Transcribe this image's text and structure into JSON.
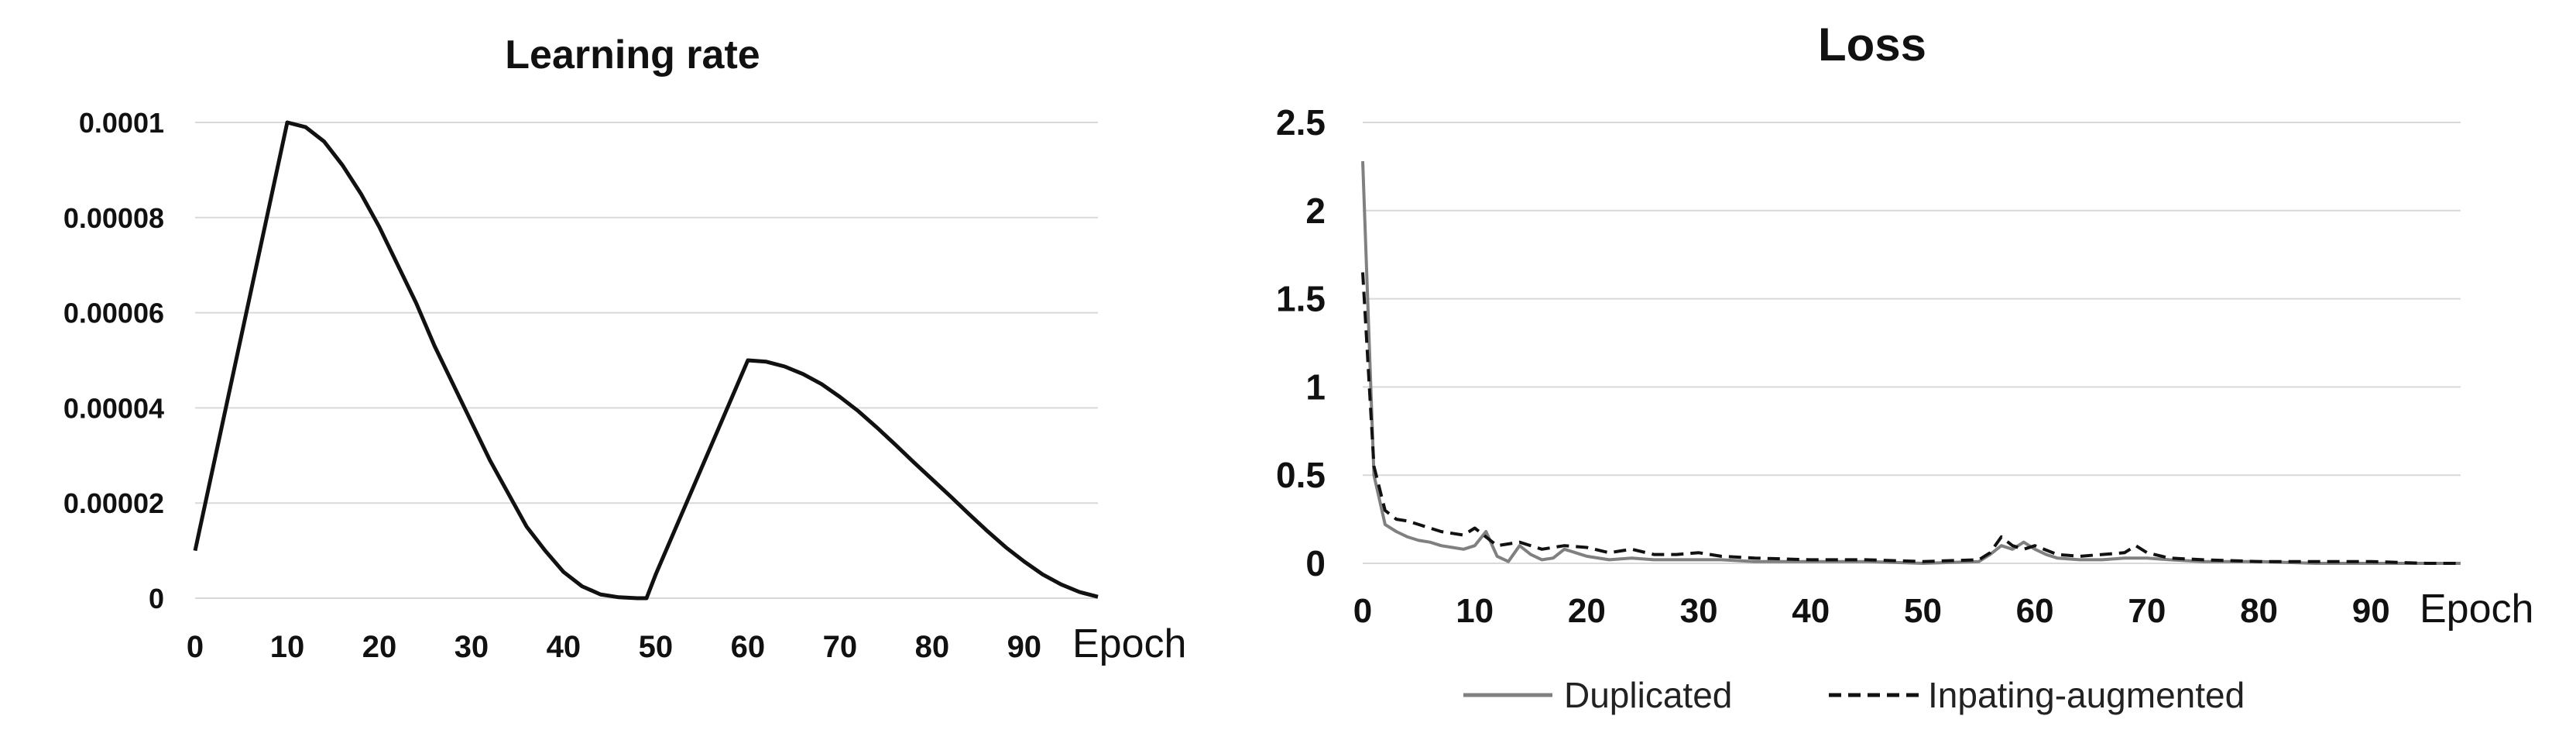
{
  "chart_data": [
    {
      "type": "line",
      "title": "Learning rate",
      "xlabel": "Epoch",
      "ylabel": "",
      "xlim": [
        0,
        98
      ],
      "ylim": [
        0,
        0.0001
      ],
      "x_ticks": [
        "0",
        "10",
        "20",
        "30",
        "40",
        "50",
        "60",
        "70",
        "80",
        "90"
      ],
      "y_ticks": [
        "0",
        "0.00002",
        "0.00004",
        "0.00006",
        "0.00008",
        "0.0001"
      ],
      "grid": true,
      "series": [
        {
          "x": [
            0,
            10,
            12,
            14,
            16,
            18,
            20,
            22,
            24,
            26,
            28,
            30,
            32,
            34,
            36,
            38,
            40,
            42,
            44,
            46,
            48,
            49,
            50,
            60,
            62,
            64,
            66,
            68,
            70,
            72,
            74,
            76,
            78,
            80,
            82,
            84,
            86,
            88,
            90,
            92,
            94,
            96,
            98
          ],
          "y": [
            1e-05,
            0.0001,
            9.9e-05,
            9.6e-05,
            9.1e-05,
            8.5e-05,
            7.8e-05,
            7e-05,
            6.2e-05,
            5.3e-05,
            4.5e-05,
            3.7e-05,
            2.9e-05,
            2.2e-05,
            1.5e-05,
            1e-05,
            5.5e-06,
            2.5e-06,
            8e-07,
            2e-07,
            0.0,
            0.0,
            5e-06,
            5e-05,
            4.97e-05,
            4.87e-05,
            4.71e-05,
            4.5e-05,
            4.23e-05,
            3.93e-05,
            3.59e-05,
            3.23e-05,
            2.86e-05,
            2.5e-05,
            2.14e-05,
            1.77e-05,
            1.41e-05,
            1.07e-05,
            7.7e-06,
            5e-06,
            2.9e-06,
            1.3e-06,
            3e-07
          ]
        }
      ]
    },
    {
      "type": "line",
      "title": "Loss",
      "xlabel": "Epoch",
      "ylabel": "",
      "xlim": [
        0,
        98
      ],
      "ylim": [
        0,
        2.5
      ],
      "x_ticks": [
        "0",
        "10",
        "20",
        "30",
        "40",
        "50",
        "60",
        "70",
        "80",
        "90"
      ],
      "y_ticks": [
        "0",
        "0.5",
        "1",
        "1.5",
        "2",
        "2.5"
      ],
      "grid": true,
      "legend": "bottom",
      "series": [
        {
          "name": "Duplicated",
          "color": "#808080",
          "dash": "solid",
          "x": [
            0,
            1,
            2,
            3,
            4,
            5,
            6,
            7,
            8,
            9,
            10,
            11,
            12,
            13,
            14,
            15,
            16,
            17,
            18,
            19,
            20,
            22,
            24,
            26,
            28,
            30,
            32,
            35,
            40,
            45,
            50,
            55,
            56,
            57,
            58,
            59,
            60,
            61,
            62,
            64,
            66,
            68,
            70,
            72,
            75,
            80,
            85,
            90,
            95,
            98
          ],
          "y": [
            2.28,
            0.5,
            0.22,
            0.18,
            0.15,
            0.13,
            0.12,
            0.1,
            0.09,
            0.08,
            0.1,
            0.18,
            0.04,
            0.01,
            0.1,
            0.05,
            0.02,
            0.03,
            0.08,
            0.06,
            0.04,
            0.02,
            0.03,
            0.02,
            0.02,
            0.02,
            0.02,
            0.01,
            0.01,
            0.01,
            0.0,
            0.01,
            0.05,
            0.1,
            0.08,
            0.12,
            0.08,
            0.05,
            0.03,
            0.02,
            0.02,
            0.03,
            0.03,
            0.02,
            0.01,
            0.01,
            0.0,
            0.0,
            0.0,
            0.0
          ]
        },
        {
          "name": "Inpating-augmented",
          "color": "#111111",
          "dash": "dashed",
          "x": [
            0,
            1,
            2,
            3,
            4,
            5,
            6,
            7,
            8,
            9,
            10,
            11,
            12,
            14,
            16,
            18,
            20,
            22,
            24,
            26,
            28,
            30,
            32,
            35,
            40,
            45,
            50,
            55,
            56,
            57,
            58,
            59,
            60,
            62,
            64,
            66,
            68,
            69,
            70,
            72,
            75,
            80,
            85,
            90,
            95,
            98
          ],
          "y": [
            1.65,
            0.55,
            0.3,
            0.25,
            0.24,
            0.22,
            0.2,
            0.18,
            0.17,
            0.16,
            0.2,
            0.15,
            0.1,
            0.12,
            0.08,
            0.1,
            0.09,
            0.06,
            0.08,
            0.05,
            0.05,
            0.06,
            0.04,
            0.03,
            0.02,
            0.02,
            0.01,
            0.02,
            0.06,
            0.15,
            0.1,
            0.08,
            0.1,
            0.05,
            0.04,
            0.05,
            0.06,
            0.1,
            0.06,
            0.03,
            0.02,
            0.01,
            0.01,
            0.01,
            0.0,
            0.0
          ]
        }
      ]
    }
  ]
}
